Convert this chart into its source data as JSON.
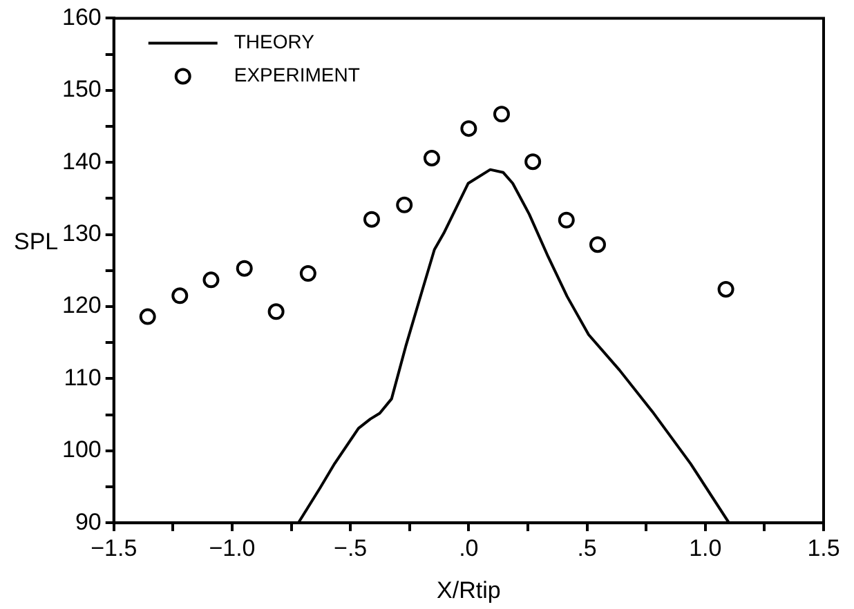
{
  "chart_data": {
    "type": "line",
    "xlabel": "X/Rtip",
    "ylabel": "SPL",
    "xlim": [
      -1.5,
      1.5
    ],
    "xticks": [
      {
        "value": -1.5,
        "label": "−1.5"
      },
      {
        "value": -1.25,
        "label": null
      },
      {
        "value": -1.0,
        "label": "−1.0"
      },
      {
        "value": -0.75,
        "label": null
      },
      {
        "value": -0.5,
        "label": "−.5"
      },
      {
        "value": -0.25,
        "label": null
      },
      {
        "value": 0,
        "label": ".0"
      },
      {
        "value": 0.25,
        "label": null
      },
      {
        "value": 0.5,
        "label": ".5"
      },
      {
        "value": 0.75,
        "label": null
      },
      {
        "value": 1.0,
        "label": "1.0"
      },
      {
        "value": 1.25,
        "label": null
      },
      1.5
    ],
    "ylim": [
      90,
      160
    ],
    "yticks": [
      90,
      {
        "value": 95,
        "label": null
      },
      100,
      {
        "value": 105,
        "label": null
      },
      110,
      {
        "value": 115,
        "label": null
      },
      120,
      {
        "value": 125,
        "label": null
      },
      130,
      {
        "value": 135,
        "label": null
      },
      140,
      {
        "value": 145,
        "label": null
      },
      150,
      {
        "value": 155,
        "label": null
      },
      160
    ],
    "grid": false,
    "legend": "top left",
    "series": [
      {
        "name": "THEORY",
        "color": "#000000",
        "marker": "none",
        "line_style": "solid",
        "x": [
          -0.72,
          -0.627,
          -0.567,
          -0.466,
          -0.416,
          -0.376,
          -0.326,
          -0.266,
          -0.195,
          -0.145,
          -0.105,
          -0.002,
          0.091,
          0.146,
          0.186,
          0.256,
          0.336,
          0.416,
          0.507,
          0.637,
          0.777,
          0.938,
          1.1
        ],
        "values": [
          90,
          94.9,
          98.2,
          103.1,
          104.4,
          105.2,
          107.2,
          114.5,
          122.4,
          127.9,
          130.2,
          137.1,
          139.0,
          138.6,
          137.1,
          132.8,
          126.9,
          121.4,
          116.1,
          111.2,
          105.4,
          98.2,
          90
        ]
      },
      {
        "name": "EXPERIMENT",
        "type": "scatter",
        "color": "#000000",
        "marker": "circle",
        "x": [
          -1.357,
          -1.221,
          -1.089,
          -0.948,
          -0.814,
          -0.679,
          -0.41,
          -0.272,
          -0.156,
          0.0,
          0.139,
          0.271,
          0.413,
          0.545,
          1.087
        ],
        "values": [
          118.6,
          121.5,
          123.7,
          125.3,
          119.3,
          124.6,
          132.1,
          134.1,
          140.6,
          144.7,
          146.7,
          140.1,
          132.0,
          128.6,
          122.4
        ]
      }
    ]
  }
}
